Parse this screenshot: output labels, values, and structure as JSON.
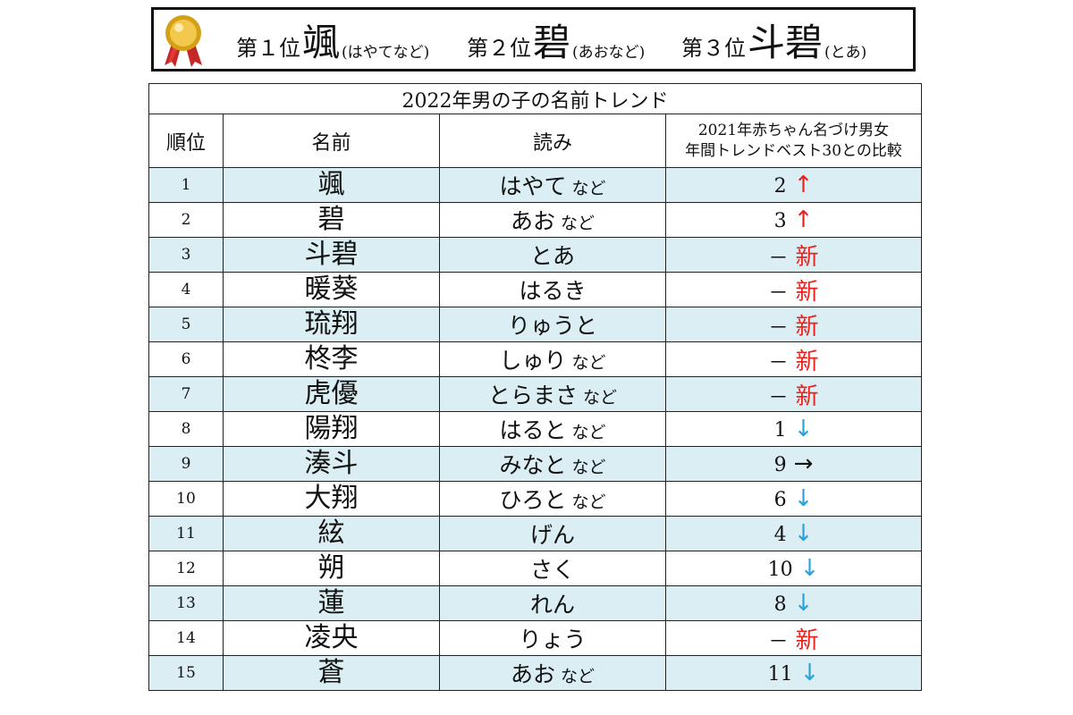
{
  "banner": {
    "ranks": [
      {
        "label": "第１位",
        "name": "颯",
        "reading": "(はやてなど)"
      },
      {
        "label": "第２位",
        "name": "碧",
        "reading": "(あおなど)"
      },
      {
        "label": "第３位",
        "name": "斗碧",
        "reading": "(とあ)"
      }
    ],
    "medal_icon": "gold-medal-icon"
  },
  "table": {
    "title": "2022年男の子の名前トレンド",
    "headers": {
      "rank": "順位",
      "name": "名前",
      "reading": "読み",
      "compare_line1": "2021年赤ちゃん名づけ男女",
      "compare_line2": "年間トレンドベスト30との比較"
    },
    "rows": [
      {
        "rank": "1",
        "name": "颯",
        "reading": "はやて",
        "nado": "など",
        "prev": "2",
        "mark": "↑"
      },
      {
        "rank": "2",
        "name": "碧",
        "reading": "あお",
        "nado": "など",
        "prev": "3",
        "mark": "↑"
      },
      {
        "rank": "3",
        "name": "斗碧",
        "reading": "とあ",
        "nado": "",
        "prev": "－",
        "mark": "新"
      },
      {
        "rank": "4",
        "name": "暖葵",
        "reading": "はるき",
        "nado": "",
        "prev": "－",
        "mark": "新"
      },
      {
        "rank": "5",
        "name": "琉翔",
        "reading": "りゅうと",
        "nado": "",
        "prev": "－",
        "mark": "新"
      },
      {
        "rank": "6",
        "name": "柊李",
        "reading": "しゅり",
        "nado": "など",
        "prev": "－",
        "mark": "新"
      },
      {
        "rank": "7",
        "name": "虎優",
        "reading": "とらまさ",
        "nado": "など",
        "prev": "－",
        "mark": "新"
      },
      {
        "rank": "8",
        "name": "陽翔",
        "reading": "はると",
        "nado": "など",
        "prev": "1",
        "mark": "↓"
      },
      {
        "rank": "9",
        "name": "湊斗",
        "reading": "みなと",
        "nado": "など",
        "prev": "9",
        "mark": "→"
      },
      {
        "rank": "10",
        "name": "大翔",
        "reading": "ひろと",
        "nado": "など",
        "prev": "6",
        "mark": "↓"
      },
      {
        "rank": "11",
        "name": "絃",
        "reading": "げん",
        "nado": "",
        "prev": "4",
        "mark": "↓"
      },
      {
        "rank": "12",
        "name": "朔",
        "reading": "さく",
        "nado": "",
        "prev": "10",
        "mark": "↓"
      },
      {
        "rank": "13",
        "name": "蓮",
        "reading": "れん",
        "nado": "",
        "prev": "8",
        "mark": "↓"
      },
      {
        "rank": "14",
        "name": "凌央",
        "reading": "りょう",
        "nado": "",
        "prev": "－",
        "mark": "新"
      },
      {
        "rank": "15",
        "name": "蒼",
        "reading": "あお",
        "nado": "など",
        "prev": "11",
        "mark": "↓"
      }
    ]
  },
  "colors": {
    "row_stripe": "#daeef3",
    "up": "#e8231f",
    "down": "#2aa3d8",
    "new": "#e8231f"
  }
}
